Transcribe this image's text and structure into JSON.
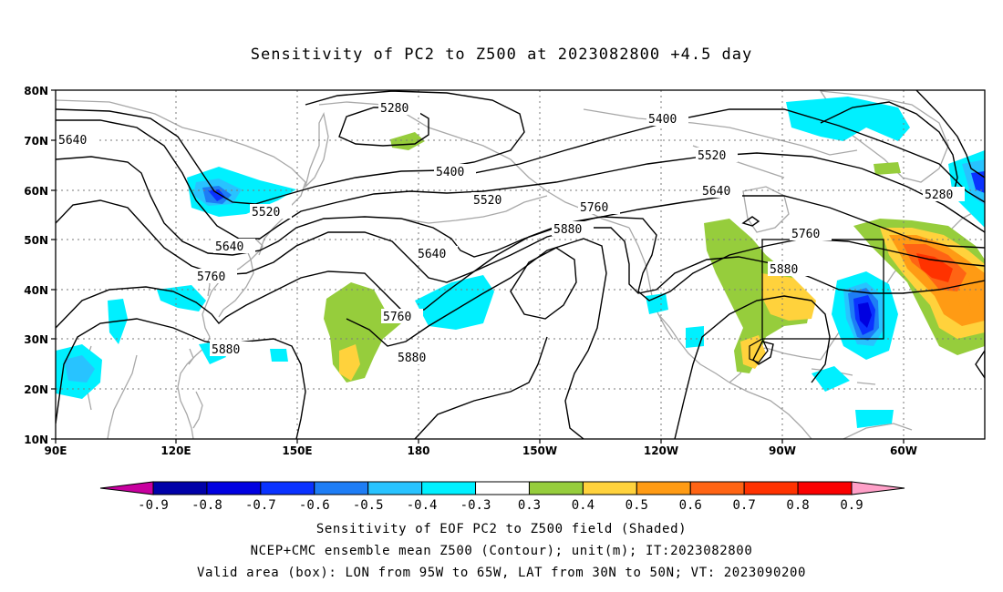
{
  "title": "Sensitivity of PC2 to Z500 at 2023082800 +4.5 day",
  "lat_labels": [
    "80N",
    "70N",
    "60N",
    "50N",
    "40N",
    "30N",
    "20N",
    "10N"
  ],
  "lon_labels": [
    "90E",
    "120E",
    "150E",
    "180",
    "150W",
    "120W",
    "90W",
    "60W"
  ],
  "contour_labels": [
    "5280",
    "5400",
    "5520",
    "5640",
    "5760",
    "5880"
  ],
  "colorbar": {
    "ticks": [
      "-0.9",
      "-0.8",
      "-0.7",
      "-0.6",
      "-0.5",
      "-0.4",
      "-0.3",
      "0.3",
      "0.4",
      "0.5",
      "0.6",
      "0.7",
      "0.8",
      "0.9"
    ],
    "colors": [
      "#c8009f",
      "#0000a8",
      "#0000e0",
      "#0a32ff",
      "#1e7df5",
      "#28c3ff",
      "#00f0ff",
      "#ffffff",
      "#96cd3c",
      "#ffd23c",
      "#ff9b14",
      "#ff6414",
      "#ff3200",
      "#fa0000",
      "#ffa0c8"
    ]
  },
  "footer": {
    "line1": "Sensitivity of EOF PC2 to Z500 field (Shaded)",
    "line2": "NCEP+CMC ensemble mean Z500 (Contour); unit(m); IT:2023082800",
    "line3": "Valid area (box): LON from 95W to 65W, LAT from 30N to 50N; VT: 2023090200"
  },
  "valid_box": {
    "lon_from": "95W",
    "lon_to": "65W",
    "lat_from": "30N",
    "lat_to": "50N"
  }
}
